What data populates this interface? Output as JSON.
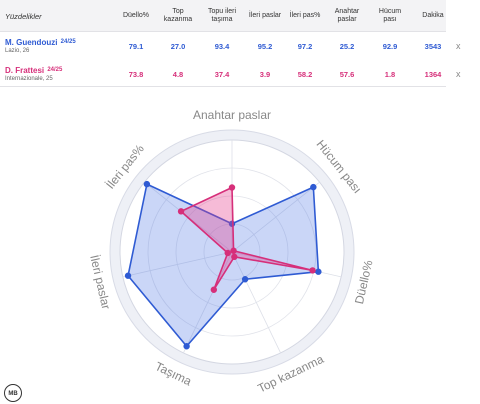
{
  "table": {
    "header_label": "Yüzdelikler",
    "columns": [
      "Düello%",
      "Top\nkazanma",
      "Topu ileri\ntaşıma",
      "İleri paslar",
      "İleri pas%",
      "Anahtar\npaslar",
      "Hücum\npası",
      "Dakika"
    ],
    "players": [
      {
        "name": "M. Guendouzi",
        "season": "24/25",
        "sub": "Lazio, 26",
        "color": "#2f5bd3",
        "values": [
          "79.1",
          "27.0",
          "93.4",
          "95.2",
          "97.2",
          "25.2",
          "92.9",
          "3543"
        ],
        "close": "x"
      },
      {
        "name": "D. Frattesi",
        "season": "24/25",
        "sub": "Internazionale, 25",
        "color": "#d62f7a",
        "values": [
          "73.8",
          "4.8",
          "37.4",
          "3.9",
          "58.2",
          "57.6",
          "1.8",
          "1364"
        ],
        "close": "x"
      }
    ]
  },
  "logo_text": "MB",
  "chart_data": {
    "type": "radar",
    "axes": [
      "Anahtar paslar",
      "Hücum pası",
      "Düello%",
      "Top kazanma",
      "Taşıma",
      "İleri paslar",
      "İleri pas%"
    ],
    "range": [
      0,
      100
    ],
    "series": [
      {
        "name": "M. Guendouzi",
        "color": "#2f5bd3",
        "values": [
          25.2,
          92.9,
          79.1,
          27.0,
          93.4,
          95.2,
          97.2
        ]
      },
      {
        "name": "D. Frattesi",
        "color": "#d62f7a",
        "values": [
          57.6,
          1.8,
          73.8,
          4.8,
          37.4,
          3.9,
          58.2
        ]
      }
    ]
  }
}
